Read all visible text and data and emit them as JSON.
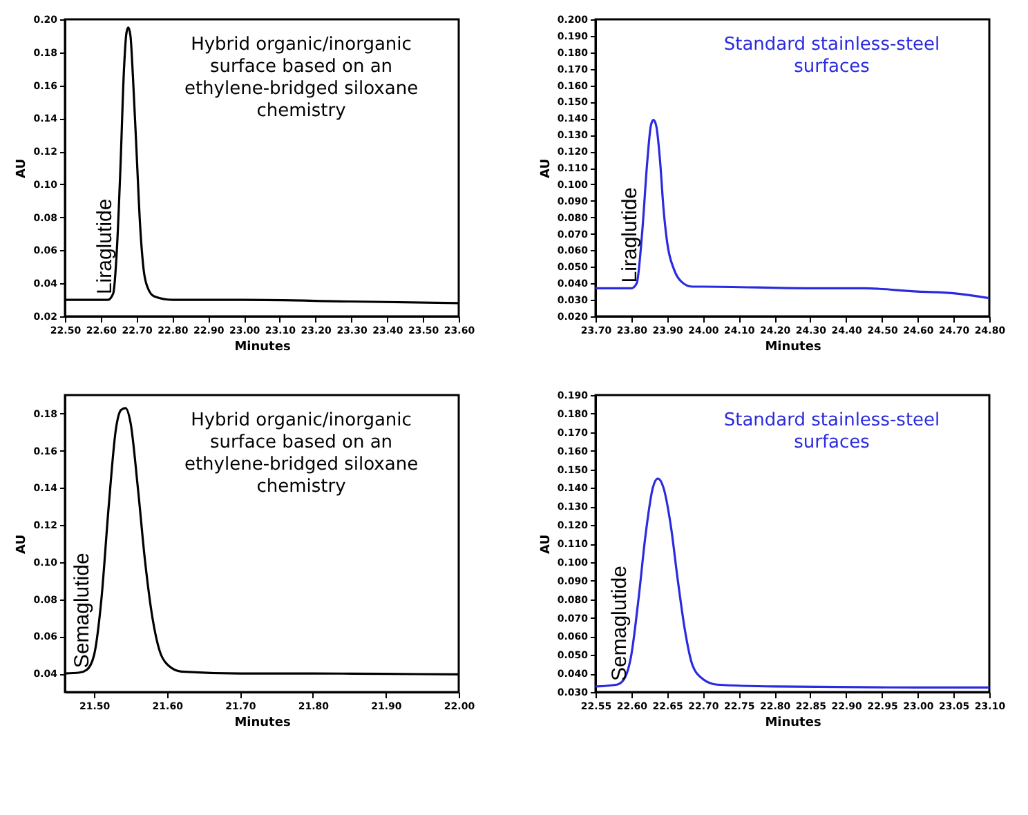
{
  "chart_data": [
    {
      "type": "line",
      "xlabel": "Minutes",
      "ylabel": "AU",
      "annotations": [
        "Hybrid organic/inorganic surface based on an ethylene-bridged siloxane chemistry",
        "Liraglutide"
      ],
      "x": [
        22.5,
        22.62,
        22.635,
        22.645,
        22.655,
        22.665,
        22.672,
        22.677,
        22.683,
        22.69,
        22.7,
        22.71,
        22.72,
        22.73,
        22.75,
        22.8,
        23.0,
        23.3,
        23.6
      ],
      "series": [
        {
          "color": "#000000",
          "values": [
            0.03,
            0.03,
            0.034,
            0.06,
            0.11,
            0.17,
            0.192,
            0.195,
            0.19,
            0.165,
            0.12,
            0.075,
            0.048,
            0.038,
            0.032,
            0.03,
            0.03,
            0.029,
            0.028
          ]
        }
      ],
      "xlim": [
        22.5,
        23.6
      ],
      "xticks": [
        {
          "value": 22.5,
          "label": "22.50"
        },
        {
          "value": 22.6,
          "label": "22.60"
        },
        {
          "value": 22.7,
          "label": "22.70"
        },
        {
          "value": 22.8,
          "label": "22.80"
        },
        {
          "value": 22.9,
          "label": "22.90"
        },
        {
          "value": 23.0,
          "label": "23.00"
        },
        {
          "value": 23.1,
          "label": "23.10"
        },
        {
          "value": 23.2,
          "label": "23.20"
        },
        {
          "value": 23.3,
          "label": "23.30"
        },
        {
          "value": 23.4,
          "label": "23.40"
        },
        {
          "value": 23.5,
          "label": "23.50"
        },
        {
          "value": 23.6,
          "label": "23.60"
        }
      ],
      "ylim": [
        0.02,
        0.2
      ],
      "yticks": [
        0.02,
        0.04,
        0.06,
        0.08,
        {
          "value": 0.1,
          "label": "0.10"
        },
        0.12,
        0.14,
        0.16,
        0.18,
        {
          "value": 0.2,
          "label": "0.20"
        }
      ],
      "grid": false
    },
    {
      "type": "line",
      "xlabel": "Minutes",
      "ylabel": "AU",
      "annotations": [
        "Standard stainless-steel surfaces",
        "Liraglutide"
      ],
      "x": [
        23.7,
        23.8,
        23.815,
        23.83,
        23.845,
        23.855,
        23.862,
        23.87,
        23.88,
        23.89,
        23.9,
        23.92,
        23.94,
        23.97,
        24.0,
        24.3,
        24.45,
        24.6,
        24.7,
        24.8
      ],
      "series": [
        {
          "color": "#2a2ae0",
          "values": [
            0.037,
            0.037,
            0.04,
            0.07,
            0.115,
            0.136,
            0.139,
            0.135,
            0.115,
            0.085,
            0.065,
            0.048,
            0.041,
            0.038,
            0.038,
            0.037,
            0.037,
            0.035,
            0.034,
            0.031
          ]
        }
      ],
      "xlim": [
        23.7,
        24.8
      ],
      "xticks": [
        {
          "value": 23.7,
          "label": "23.70"
        },
        {
          "value": 23.8,
          "label": "23.80"
        },
        {
          "value": 23.9,
          "label": "23.90"
        },
        {
          "value": 24.0,
          "label": "24.00"
        },
        {
          "value": 24.1,
          "label": "24.10"
        },
        {
          "value": 24.2,
          "label": "24.20"
        },
        {
          "value": 24.3,
          "label": "24.30"
        },
        {
          "value": 24.4,
          "label": "24.40"
        },
        {
          "value": 24.5,
          "label": "24.50"
        },
        {
          "value": 24.6,
          "label": "24.60"
        },
        {
          "value": 24.7,
          "label": "24.70"
        },
        {
          "value": 24.8,
          "label": "24.80"
        }
      ],
      "ylim": [
        0.02,
        0.2
      ],
      "yticks": [
        {
          "value": 0.02,
          "label": "0.020"
        },
        {
          "value": 0.03,
          "label": "0.030"
        },
        {
          "value": 0.04,
          "label": "0.040"
        },
        {
          "value": 0.05,
          "label": "0.050"
        },
        {
          "value": 0.06,
          "label": "0.060"
        },
        {
          "value": 0.07,
          "label": "0.070"
        },
        {
          "value": 0.08,
          "label": "0.080"
        },
        {
          "value": 0.09,
          "label": "0.090"
        },
        {
          "value": 0.1,
          "label": "0.100"
        },
        {
          "value": 0.11,
          "label": "0.110"
        },
        {
          "value": 0.12,
          "label": "0.120"
        },
        {
          "value": 0.13,
          "label": "0.130"
        },
        {
          "value": 0.14,
          "label": "0.140"
        },
        {
          "value": 0.15,
          "label": "0.150"
        },
        {
          "value": 0.16,
          "label": "0.160"
        },
        {
          "value": 0.17,
          "label": "0.170"
        },
        {
          "value": 0.18,
          "label": "0.180"
        },
        {
          "value": 0.19,
          "label": "0.190"
        },
        {
          "value": 0.2,
          "label": "0.200"
        }
      ],
      "grid": false
    },
    {
      "type": "line",
      "xlabel": "Minutes",
      "ylabel": "AU",
      "annotations": [
        "Hybrid organic/inorganic surface based on an ethylene-bridged siloxane chemistry",
        "Semaglutide"
      ],
      "x": [
        21.46,
        21.48,
        21.49,
        21.5,
        21.51,
        21.52,
        21.53,
        21.537,
        21.543,
        21.55,
        21.56,
        21.57,
        21.58,
        21.59,
        21.6,
        21.62,
        21.7,
        21.8,
        21.9,
        22.0
      ],
      "series": [
        {
          "color": "#000000",
          "values": [
            0.04,
            0.0405,
            0.042,
            0.05,
            0.08,
            0.13,
            0.172,
            0.182,
            0.183,
            0.175,
            0.14,
            0.1,
            0.07,
            0.052,
            0.045,
            0.041,
            0.04,
            0.04,
            0.0398,
            0.0395
          ]
        }
      ],
      "xlim": [
        21.46,
        22.0
      ],
      "xticks": [
        {
          "value": 21.5,
          "label": "21.50"
        },
        {
          "value": 21.6,
          "label": "21.60"
        },
        {
          "value": 21.7,
          "label": "21.70"
        },
        {
          "value": 21.8,
          "label": "21.80"
        },
        {
          "value": 21.9,
          "label": "21.90"
        },
        {
          "value": 22.0,
          "label": "22.00"
        }
      ],
      "ylim": [
        0.03,
        0.19
      ],
      "yticks": [
        0.04,
        0.06,
        0.08,
        {
          "value": 0.1,
          "label": "0.10"
        },
        0.12,
        0.14,
        0.16,
        0.18
      ],
      "grid": false
    },
    {
      "type": "line",
      "xlabel": "Minutes",
      "ylabel": "AU",
      "annotations": [
        "Standard stainless-steel surfaces",
        "Semaglutide"
      ],
      "x": [
        22.55,
        22.58,
        22.59,
        22.6,
        22.61,
        22.62,
        22.63,
        22.637,
        22.645,
        22.655,
        22.665,
        22.675,
        22.685,
        22.7,
        22.72,
        22.8,
        23.0,
        23.1
      ],
      "series": [
        {
          "color": "#2a2ae0",
          "values": [
            0.033,
            0.034,
            0.037,
            0.05,
            0.08,
            0.115,
            0.14,
            0.145,
            0.14,
            0.12,
            0.09,
            0.063,
            0.045,
            0.037,
            0.034,
            0.033,
            0.0325,
            0.0325
          ]
        }
      ],
      "xlim": [
        22.55,
        23.1
      ],
      "xticks": [
        {
          "value": 22.55,
          "label": "22.55"
        },
        {
          "value": 22.6,
          "label": "22.60"
        },
        {
          "value": 22.65,
          "label": "22.65"
        },
        {
          "value": 22.7,
          "label": "22.70"
        },
        {
          "value": 22.75,
          "label": "22.75"
        },
        {
          "value": 22.8,
          "label": "22.80"
        },
        {
          "value": 22.85,
          "label": "22.85"
        },
        {
          "value": 22.9,
          "label": "22.90"
        },
        {
          "value": 22.95,
          "label": "22.95"
        },
        {
          "value": 23.0,
          "label": "23.00"
        },
        {
          "value": 23.05,
          "label": "23.05"
        },
        {
          "value": 23.1,
          "label": "23.10"
        }
      ],
      "ylim": [
        0.03,
        0.19
      ],
      "yticks": [
        {
          "value": 0.03,
          "label": "0.030"
        },
        {
          "value": 0.04,
          "label": "0.040"
        },
        {
          "value": 0.05,
          "label": "0.050"
        },
        {
          "value": 0.06,
          "label": "0.060"
        },
        {
          "value": 0.07,
          "label": "0.070"
        },
        {
          "value": 0.08,
          "label": "0.080"
        },
        {
          "value": 0.09,
          "label": "0.090"
        },
        {
          "value": 0.1,
          "label": "0.100"
        },
        {
          "value": 0.11,
          "label": "0.110"
        },
        {
          "value": 0.12,
          "label": "0.120"
        },
        {
          "value": 0.13,
          "label": "0.130"
        },
        {
          "value": 0.14,
          "label": "0.140"
        },
        {
          "value": 0.15,
          "label": "0.150"
        },
        {
          "value": 0.16,
          "label": "0.160"
        },
        {
          "value": 0.17,
          "label": "0.170"
        },
        {
          "value": 0.18,
          "label": "0.180"
        },
        {
          "value": 0.19,
          "label": "0.190"
        }
      ],
      "grid": false
    }
  ]
}
